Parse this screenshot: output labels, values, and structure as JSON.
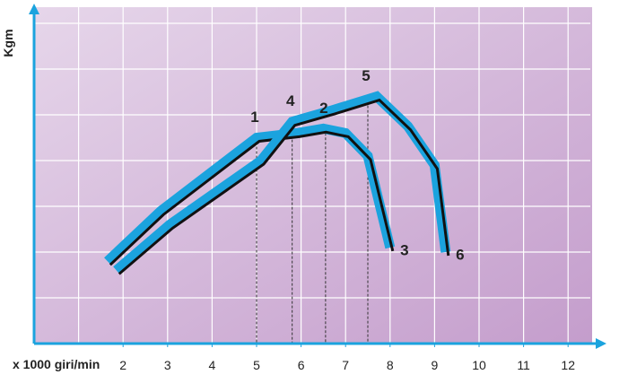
{
  "chart_data": {
    "type": "line",
    "x_label": "x 1000 giri/min",
    "y_label": "Kgm",
    "xlim": [
      0,
      12.5
    ],
    "ylim": [
      0,
      7
    ],
    "xticks": [
      2,
      3,
      4,
      5,
      6,
      7,
      8,
      9,
      10,
      11,
      12
    ],
    "grid": true,
    "series": [
      {
        "color": "#1ba3de",
        "x": [
          1.65,
          2.85,
          5.0,
          5.9,
          6.5,
          7.0,
          7.5,
          8.0
        ],
        "values": [
          1.8,
          2.9,
          4.5,
          4.6,
          4.7,
          4.6,
          4.1,
          2.1
        ]
      },
      {
        "color": "#1ba3de",
        "x": [
          1.85,
          3.05,
          5.1,
          5.8,
          6.7,
          7.7,
          8.4,
          9.0,
          9.25
        ],
        "values": [
          1.6,
          2.6,
          4.0,
          4.85,
          5.1,
          5.4,
          4.75,
          3.9,
          2.0
        ]
      }
    ],
    "markers": [
      {
        "label": "1",
        "x": 5.0,
        "y": 4.5,
        "drop": true
      },
      {
        "label": "4",
        "x": 5.8,
        "y": 4.85,
        "drop": true
      },
      {
        "label": "2",
        "x": 6.55,
        "y": 4.7,
        "drop": true
      },
      {
        "label": "5",
        "x": 7.5,
        "y": 5.4,
        "drop": true
      },
      {
        "label": "3",
        "x": 8.0,
        "y": 2.1,
        "drop": false
      },
      {
        "label": "6",
        "x": 9.25,
        "y": 2.0,
        "drop": false
      }
    ]
  }
}
